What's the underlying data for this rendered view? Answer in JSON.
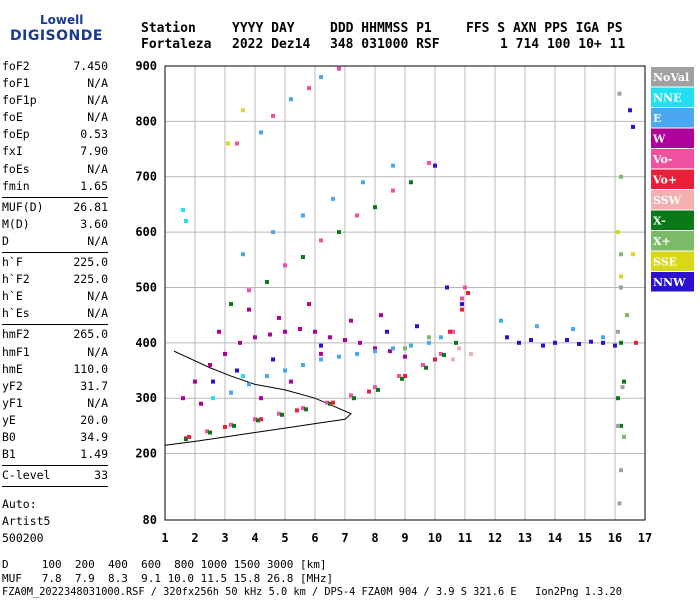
{
  "logo": {
    "top": "Lowell",
    "bottom": "DIGISONDE"
  },
  "header": {
    "labels": [
      "Station",
      "YYYY DAY",
      "DDD HHMMSS P1",
      "FFS S AXN PPS IGA PS"
    ],
    "values": [
      "Fortaleza",
      "2022 Dez14",
      "348 031000 RSF",
      "1 714 100 10+ 11"
    ]
  },
  "params": [
    {
      "name": "foF2",
      "value": "7.450"
    },
    {
      "name": "foF1",
      "value": "N/A"
    },
    {
      "name": "foF1p",
      "value": "N/A"
    },
    {
      "name": "foE",
      "value": "N/A"
    },
    {
      "name": "foEp",
      "value": "0.53"
    },
    {
      "name": "fxI",
      "value": "7.90"
    },
    {
      "name": "foEs",
      "value": "N/A"
    },
    {
      "name": "fmin",
      "value": "1.65"
    },
    {
      "sep": true
    },
    {
      "name": "MUF(D)",
      "value": "26.81"
    },
    {
      "name": "M(D)",
      "value": "3.60"
    },
    {
      "name": "D",
      "value": "N/A"
    },
    {
      "sep": true
    },
    {
      "name": "h`F",
      "value": "225.0"
    },
    {
      "name": "h`F2",
      "value": "225.0"
    },
    {
      "name": "h`E",
      "value": "N/A"
    },
    {
      "name": "h`Es",
      "value": "N/A"
    },
    {
      "sep": true
    },
    {
      "name": "hmF2",
      "value": "265.0"
    },
    {
      "name": "hmF1",
      "value": "N/A"
    },
    {
      "name": "hmE",
      "value": "110.0"
    },
    {
      "name": "yF2",
      "value": "31.7"
    },
    {
      "name": "yF1",
      "value": "N/A"
    },
    {
      "name": "yE",
      "value": "20.0"
    },
    {
      "name": "B0",
      "value": "34.9"
    },
    {
      "name": "B1",
      "value": "1.49"
    },
    {
      "sep": true
    },
    {
      "name": "C-level",
      "value": "33"
    },
    {
      "sep": true
    }
  ],
  "auto": [
    "Auto:",
    "Artist5",
    "500200"
  ],
  "footer": {
    "d_row": "D     100  200  400  600  800 1000 1500 3000 [km]",
    "muf_row": "MUF   7.8  7.9  8.3  9.1 10.0 11.5 15.8 26.8 [MHz]",
    "info": "FZA0M_2022348031000.RSF / 320fx256h 50 kHz 5.0 km / DPS-4 FZA0M 904 / 3.9 S 321.6 E   Ion2Png 1.3.20"
  },
  "chart_data": {
    "type": "scatter",
    "xlim": [
      1,
      17
    ],
    "ylim": [
      80,
      900
    ],
    "x_ticks": [
      1,
      2,
      3,
      4,
      5,
      6,
      7,
      8,
      9,
      10,
      11,
      12,
      13,
      14,
      15,
      16,
      17
    ],
    "y_ticks": [
      80,
      200,
      300,
      400,
      500,
      600,
      700,
      800,
      900
    ],
    "grid": true,
    "legend_position": "right",
    "legend": [
      {
        "label": "NoVal",
        "color": "#a0a0a0"
      },
      {
        "label": "NNE",
        "color": "#22e0f0"
      },
      {
        "label": "E",
        "color": "#4aa8f0"
      },
      {
        "label": "W",
        "color": "#b0009a"
      },
      {
        "label": "Vo-",
        "color": "#f050a0"
      },
      {
        "label": "Vo+",
        "color": "#e8203a"
      },
      {
        "label": "SSW",
        "color": "#f4b0b0"
      },
      {
        "label": "X-",
        "color": "#0a7a18"
      },
      {
        "label": "X+",
        "color": "#7cba68"
      },
      {
        "label": "SSE",
        "color": "#d8d818"
      },
      {
        "label": "NNW",
        "color": "#2a10d0"
      }
    ],
    "series": [
      {
        "color": "#b0009a",
        "points": [
          [
            1.6,
            300
          ],
          [
            2.0,
            330
          ],
          [
            2.5,
            360
          ],
          [
            3.0,
            380
          ],
          [
            3.5,
            400
          ],
          [
            4.0,
            410
          ],
          [
            4.5,
            415
          ],
          [
            5.0,
            420
          ],
          [
            5.5,
            425
          ],
          [
            6.0,
            420
          ],
          [
            6.5,
            410
          ],
          [
            7.0,
            405
          ],
          [
            7.5,
            400
          ],
          [
            8.0,
            390
          ],
          [
            8.5,
            385
          ],
          [
            9.0,
            375
          ],
          [
            2.2,
            290
          ],
          [
            3.2,
            310
          ],
          [
            4.2,
            300
          ],
          [
            5.2,
            330
          ],
          [
            6.2,
            380
          ],
          [
            7.2,
            440
          ],
          [
            8.2,
            450
          ],
          [
            2.8,
            420
          ],
          [
            3.8,
            460
          ],
          [
            4.8,
            445
          ],
          [
            5.8,
            470
          ]
        ]
      },
      {
        "color": "#4aa8f0",
        "points": [
          [
            3.2,
            310
          ],
          [
            3.8,
            325
          ],
          [
            4.4,
            340
          ],
          [
            5.0,
            350
          ],
          [
            5.6,
            360
          ],
          [
            6.2,
            370
          ],
          [
            6.8,
            375
          ],
          [
            7.4,
            380
          ],
          [
            8.0,
            385
          ],
          [
            8.6,
            390
          ],
          [
            9.2,
            395
          ],
          [
            9.8,
            400
          ],
          [
            10.2,
            410
          ],
          [
            10.6,
            420
          ],
          [
            3.6,
            560
          ],
          [
            4.6,
            600
          ],
          [
            5.6,
            630
          ],
          [
            6.6,
            660
          ],
          [
            7.6,
            690
          ],
          [
            8.6,
            720
          ],
          [
            4.2,
            780
          ],
          [
            5.2,
            840
          ],
          [
            6.2,
            880
          ],
          [
            12.2,
            440
          ],
          [
            13.4,
            430
          ],
          [
            14.6,
            425
          ],
          [
            15.6,
            410
          ]
        ]
      },
      {
        "color": "#f050a0",
        "points": [
          [
            1.7,
            228
          ],
          [
            2.4,
            240
          ],
          [
            3.2,
            252
          ],
          [
            4.0,
            262
          ],
          [
            4.8,
            272
          ],
          [
            5.6,
            282
          ],
          [
            6.4,
            292
          ],
          [
            7.2,
            305
          ],
          [
            8.0,
            320
          ],
          [
            8.8,
            340
          ],
          [
            9.6,
            360
          ],
          [
            10.2,
            380
          ],
          [
            10.6,
            420
          ],
          [
            10.9,
            480
          ],
          [
            11.0,
            500
          ],
          [
            3.8,
            495
          ],
          [
            5.0,
            540
          ],
          [
            6.2,
            585
          ],
          [
            7.4,
            630
          ],
          [
            8.6,
            675
          ],
          [
            9.8,
            725
          ],
          [
            3.4,
            760
          ],
          [
            4.6,
            810
          ],
          [
            5.8,
            860
          ],
          [
            6.8,
            895
          ]
        ]
      },
      {
        "color": "#0a7a18",
        "points": [
          [
            1.7,
            226
          ],
          [
            2.5,
            238
          ],
          [
            3.3,
            250
          ],
          [
            4.1,
            260
          ],
          [
            4.9,
            270
          ],
          [
            5.7,
            280
          ],
          [
            6.5,
            290
          ],
          [
            7.3,
            300
          ],
          [
            8.1,
            315
          ],
          [
            8.9,
            335
          ],
          [
            9.7,
            355
          ],
          [
            10.3,
            378
          ],
          [
            10.7,
            400
          ],
          [
            3.2,
            470
          ],
          [
            4.4,
            510
          ],
          [
            5.6,
            555
          ],
          [
            6.8,
            600
          ],
          [
            8.0,
            645
          ],
          [
            9.2,
            690
          ],
          [
            16.1,
            300
          ],
          [
            16.2,
            250
          ],
          [
            16.3,
            330
          ],
          [
            16.2,
            400
          ]
        ]
      },
      {
        "color": "#e8203a",
        "points": [
          [
            1.8,
            230
          ],
          [
            3.0,
            248
          ],
          [
            4.2,
            262
          ],
          [
            5.4,
            278
          ],
          [
            6.6,
            292
          ],
          [
            7.8,
            312
          ],
          [
            9.0,
            340
          ],
          [
            10.0,
            370
          ],
          [
            10.5,
            420
          ],
          [
            10.9,
            460
          ],
          [
            11.1,
            490
          ],
          [
            16.7,
            400
          ]
        ]
      },
      {
        "color": "#2a10d0",
        "points": [
          [
            2.6,
            330
          ],
          [
            3.4,
            350
          ],
          [
            4.6,
            370
          ],
          [
            6.2,
            395
          ],
          [
            8.4,
            420
          ],
          [
            9.4,
            430
          ],
          [
            10.4,
            500
          ],
          [
            10.9,
            470
          ],
          [
            12.4,
            410
          ],
          [
            12.8,
            400
          ],
          [
            13.2,
            405
          ],
          [
            13.6,
            395
          ],
          [
            14.0,
            400
          ],
          [
            14.4,
            405
          ],
          [
            14.8,
            398
          ],
          [
            15.2,
            402
          ],
          [
            15.6,
            400
          ],
          [
            16.0,
            395
          ],
          [
            10.0,
            720
          ],
          [
            16.5,
            820
          ],
          [
            16.6,
            790
          ]
        ]
      },
      {
        "color": "#d8d818",
        "points": [
          [
            3.6,
            820
          ],
          [
            16.2,
            520
          ],
          [
            16.6,
            560
          ],
          [
            16.1,
            600
          ],
          [
            3.1,
            760
          ]
        ]
      },
      {
        "color": "#f4b0b0",
        "points": [
          [
            10.6,
            370
          ],
          [
            11.2,
            380
          ],
          [
            10.8,
            390
          ]
        ]
      },
      {
        "color": "#7cba68",
        "points": [
          [
            9.0,
            390
          ],
          [
            9.8,
            410
          ],
          [
            16.4,
            450
          ],
          [
            16.2,
            560
          ],
          [
            16.3,
            230
          ],
          [
            16.2,
            700
          ]
        ]
      },
      {
        "color": "#22e0f0",
        "points": [
          [
            2.6,
            300
          ],
          [
            3.6,
            340
          ],
          [
            1.6,
            640
          ],
          [
            1.7,
            620
          ]
        ]
      },
      {
        "color": "#a0a0a0",
        "points": [
          [
            16.15,
            850
          ],
          [
            16.2,
            500
          ],
          [
            16.1,
            420
          ],
          [
            16.25,
            320
          ],
          [
            16.1,
            250
          ],
          [
            16.2,
            170
          ],
          [
            16.15,
            110
          ]
        ]
      }
    ],
    "model_curve": [
      [
        1.0,
        215
      ],
      [
        2.0,
        222
      ],
      [
        3.0,
        230
      ],
      [
        4.0,
        238
      ],
      [
        5.0,
        246
      ],
      [
        6.0,
        254
      ],
      [
        7.0,
        262
      ],
      [
        7.2,
        272
      ],
      [
        6.0,
        300
      ],
      [
        5.0,
        315
      ],
      [
        4.0,
        325
      ],
      [
        3.2,
        340
      ],
      [
        2.5,
        355
      ],
      [
        1.7,
        375
      ],
      [
        1.3,
        385
      ]
    ]
  }
}
